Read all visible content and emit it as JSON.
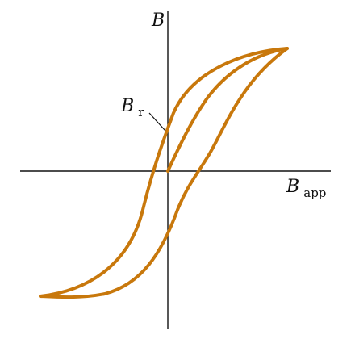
{
  "labels": {
    "b_axis": "B",
    "b_app_main": "B",
    "b_app_sub": "app",
    "b_r_main": "B",
    "b_r_sub": "r"
  },
  "colors": {
    "curve": "#c8780c",
    "axis": "#111111",
    "background": "#ffffff"
  }
}
